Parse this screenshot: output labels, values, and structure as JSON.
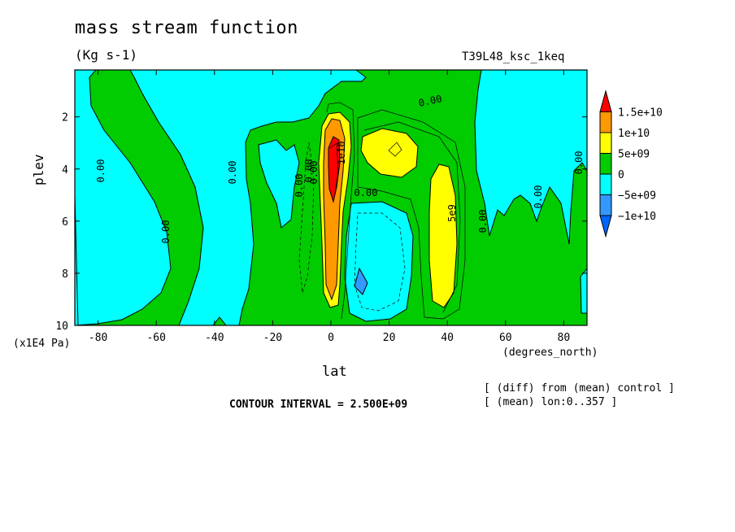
{
  "chart_data": {
    "type": "heatmap",
    "title": "mass stream function",
    "units": "(Kg s-1)",
    "run_id": "T39L48_ksc_1keq",
    "xlabel": "lat",
    "x_units": "(degrees_north)",
    "ylabel": "plev",
    "y_units": "(x1E4 Pa)",
    "xlim": [
      -88,
      88
    ],
    "ylim": [
      10,
      0.2
    ],
    "x_ticks": [
      "-80",
      "-60",
      "-40",
      "-20",
      "0",
      "20",
      "40",
      "60",
      "80"
    ],
    "y_ticks": [
      "2",
      "4",
      "6",
      "8",
      "10"
    ],
    "contour_interval": "CONTOUR INTERVAL = 2.500E+09",
    "notes": [
      "[ (diff) from (mean) control ]",
      "[ (mean) lon:0..357 ]"
    ],
    "legend": {
      "placement": "right",
      "labels": [
        "1.5e+10",
        "1e+10",
        "5e+09",
        "0",
        "−5e+09",
        "−1e+10"
      ],
      "colors": [
        "#ff0000",
        "#ff9900",
        "#ffff00",
        "#00cc00",
        "#00ffff",
        "#3399ff",
        "#0066ff"
      ]
    },
    "contour_labels": [
      "0.00",
      "0.00",
      "0.00",
      "0.00",
      "0.00",
      "0.00",
      "0.00",
      "0.00",
      "0.00",
      "0.00",
      "0.00",
      "5e9",
      "1e10"
    ],
    "regions": [
      {
        "name": "negative-zone-southpole",
        "level": -5000000000.0
      },
      {
        "name": "negative-zone-midlat-south",
        "level": -5000000000.0
      },
      {
        "name": "negative-zone-tropics-north",
        "level": -5000000000.0
      },
      {
        "name": "strong-negative-cell",
        "level": -10000000000.0
      },
      {
        "name": "positive-cell-equator",
        "level": 5000000000.0
      },
      {
        "name": "strong-positive-cell-equator",
        "level": 10000000000.0
      },
      {
        "name": "max-positive-cell-equator",
        "level": 15000000000.0
      },
      {
        "name": "positive-cell-upper-north",
        "level": 5000000000.0
      },
      {
        "name": "positive-cell-40n",
        "level": 5000000000.0
      }
    ]
  }
}
